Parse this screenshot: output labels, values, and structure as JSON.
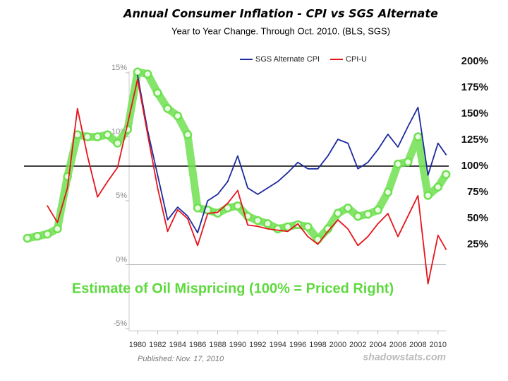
{
  "chart_data": {
    "type": "line",
    "title": "Annual Consumer Inflation - CPI vs SGS Alternate",
    "subtitle": "Year to Year Change. Through Oct. 2010.   (BLS, SGS)",
    "annotation": "Estimate of Oil Mispricing (100% = Priced Right)",
    "footer_left": "Published: Nov. 17, 2010",
    "footer_right": "shadowstats.com",
    "x": [
      1969,
      1970,
      1971,
      1972,
      1973,
      1974,
      1975,
      1976,
      1977,
      1978,
      1979,
      1980,
      1981,
      1982,
      1983,
      1984,
      1985,
      1986,
      1987,
      1988,
      1989,
      1990,
      1991,
      1992,
      1993,
      1994,
      1995,
      1996,
      1997,
      1998,
      1999,
      2000,
      2001,
      2002,
      2003,
      2004,
      2005,
      2006,
      2007,
      2008,
      2009,
      2010,
      2010.8
    ],
    "series": [
      {
        "name": "SGS Alternate CPI",
        "color": "#1c2a9e",
        "values": [
          null,
          null,
          null,
          null,
          null,
          null,
          null,
          null,
          null,
          null,
          null,
          14.8,
          10.5,
          7.0,
          3.5,
          4.5,
          3.8,
          2.5,
          5.0,
          5.5,
          6.5,
          8.5,
          6.0,
          5.5,
          6.0,
          6.5,
          7.2,
          8.0,
          7.5,
          7.5,
          8.5,
          9.8,
          9.5,
          7.5,
          8.0,
          9.0,
          10.2,
          9.2,
          10.8,
          12.3,
          7.0,
          9.5,
          8.6
        ]
      },
      {
        "name": "CPI-U",
        "color": "#e8141a",
        "values": [
          null,
          null,
          4.6,
          3.3,
          6.0,
          12.2,
          8.5,
          5.3,
          6.5,
          7.6,
          11.0,
          14.5,
          10.2,
          6.0,
          2.6,
          4.3,
          3.6,
          1.5,
          4.0,
          4.1,
          4.8,
          5.8,
          3.1,
          3.0,
          2.8,
          2.7,
          2.6,
          3.2,
          2.2,
          1.6,
          2.6,
          3.5,
          2.8,
          1.5,
          2.2,
          3.2,
          4.0,
          2.2,
          3.8,
          5.4,
          -1.5,
          2.3,
          1.2
        ]
      },
      {
        "name": "Estimate of Oil Mispricing",
        "color": "#6fe050",
        "axis": "y2",
        "values": [
          31,
          33,
          35,
          40,
          90,
          130,
          128,
          128,
          130,
          122,
          135,
          190,
          188,
          170,
          155,
          148,
          130,
          60,
          58,
          55,
          60,
          62,
          52,
          48,
          45,
          40,
          42,
          44,
          42,
          30,
          40,
          55,
          60,
          52,
          54,
          58,
          75,
          102,
          104,
          128,
          72,
          80,
          92
        ]
      }
    ],
    "xlim": [
      1968.8,
      2011
    ],
    "xticks": [
      1980,
      1982,
      1984,
      1986,
      1988,
      1990,
      1992,
      1994,
      1996,
      1998,
      2000,
      2002,
      2004,
      2006,
      2008,
      2010
    ],
    "ylim": [
      -5,
      15
    ],
    "yticks": [
      {
        "value": -5,
        "label": "-5%"
      },
      {
        "value": 0,
        "label": "0%"
      },
      {
        "value": 5,
        "label": "5%"
      },
      {
        "value": 10,
        "label": "10%"
      },
      {
        "value": 15,
        "label": "15%"
      }
    ],
    "y2lim": [
      0,
      200
    ],
    "y2ticks": [
      {
        "value": 25,
        "label": "25%"
      },
      {
        "value": 50,
        "label": "50%"
      },
      {
        "value": 75,
        "label": "75%"
      },
      {
        "value": 100,
        "label": "100%"
      },
      {
        "value": 125,
        "label": "125%"
      },
      {
        "value": 150,
        "label": "150%"
      },
      {
        "value": 175,
        "label": "175%"
      },
      {
        "value": 200,
        "label": "200%"
      }
    ],
    "y2_reference_line": 100
  }
}
